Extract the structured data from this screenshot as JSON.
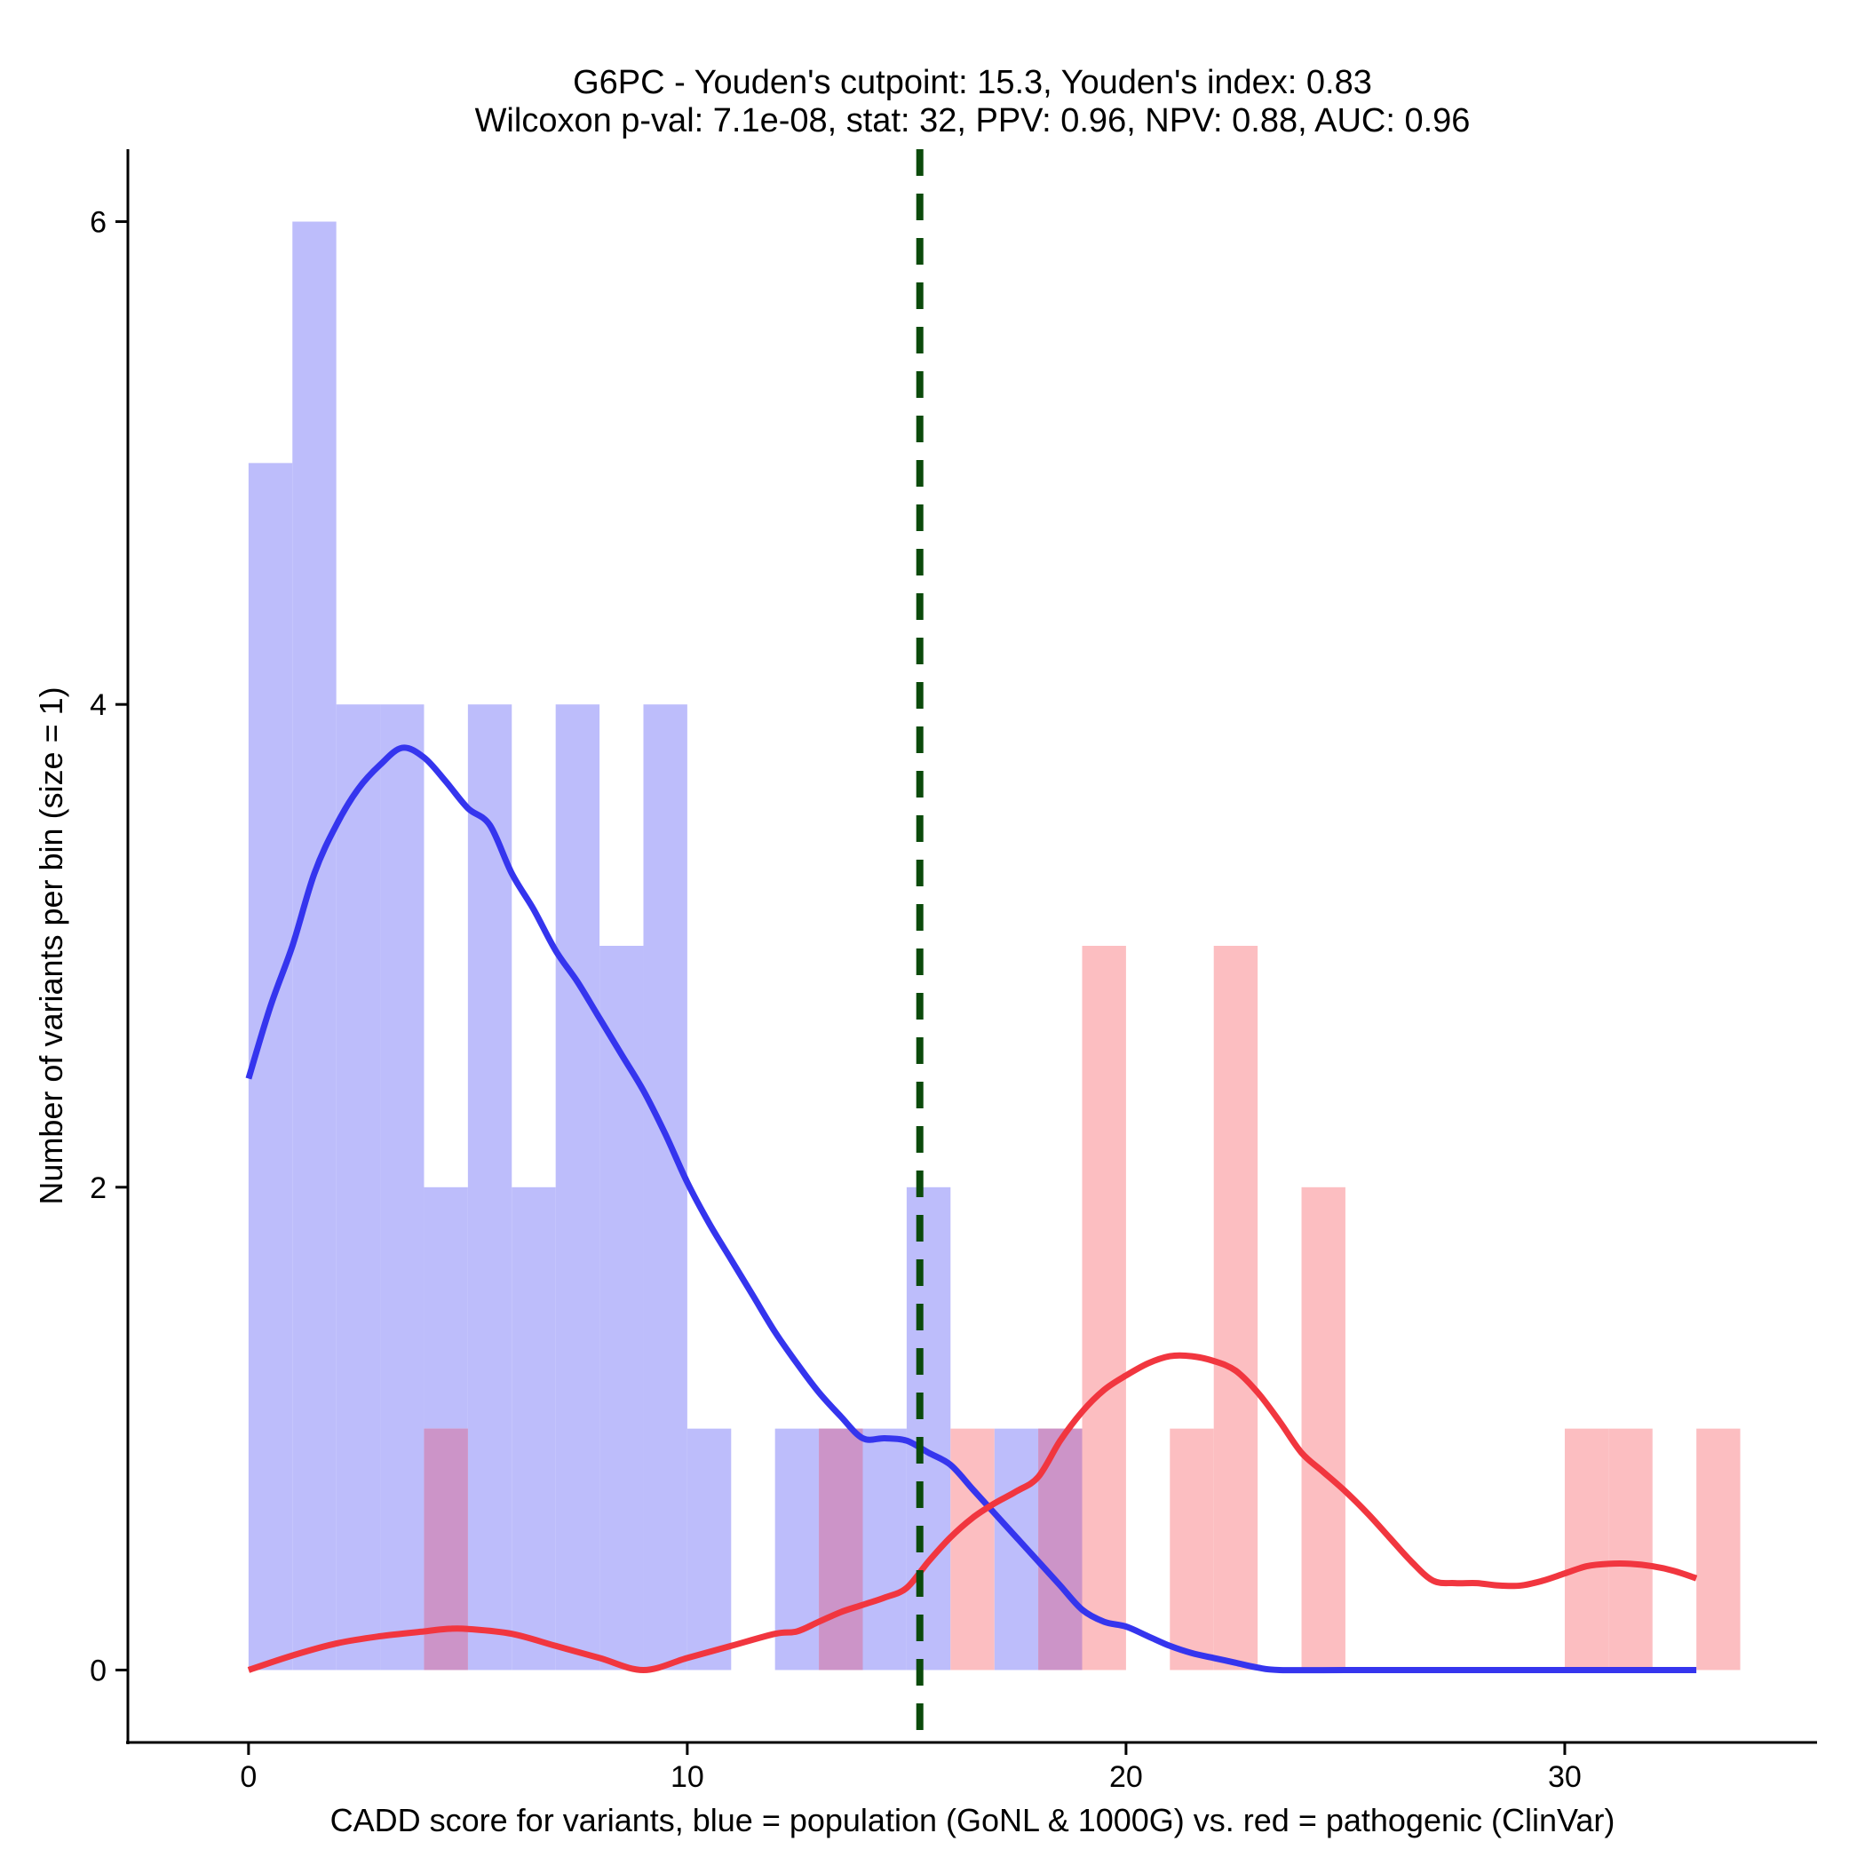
{
  "chart_data": {
    "type": "bar",
    "title_line1": "G6PC - Youden's cutpoint: 15.3, Youden's index: 0.83",
    "title_line2": "Wilcoxon p-val: 7.1e-08, stat: 32, PPV: 0.96, NPV: 0.88, AUC: 0.96",
    "xlabel": "CADD score for variants, blue = population (GoNL & 1000G) vs. red = pathogenic (ClinVar)",
    "ylabel": "Number of variants per bin (size = 1)",
    "xlim": [
      -2.75,
      35.75
    ],
    "ylim": [
      -0.3,
      6.3
    ],
    "xticks": [
      0,
      10,
      20,
      30
    ],
    "yticks": [
      0,
      2,
      4,
      6
    ],
    "cutpoint": 15.3,
    "colors": {
      "population_bar": "#bdbdfb",
      "pathogenic_bar": "#fcbec1",
      "overlap_bar": "#cc94c8",
      "population_line": "#3535ee",
      "pathogenic_line": "#f1363f",
      "cutpoint_line": "#0b4a0b"
    },
    "series": [
      {
        "name": "population (GoNL & 1000G)",
        "bins": [
          {
            "x0": 0,
            "x1": 1,
            "count": 5
          },
          {
            "x0": 1,
            "x1": 2,
            "count": 6
          },
          {
            "x0": 2,
            "x1": 3,
            "count": 4
          },
          {
            "x0": 3,
            "x1": 4,
            "count": 4
          },
          {
            "x0": 4,
            "x1": 5,
            "count": 2
          },
          {
            "x0": 5,
            "x1": 6,
            "count": 4
          },
          {
            "x0": 6,
            "x1": 7,
            "count": 2
          },
          {
            "x0": 7,
            "x1": 8,
            "count": 4
          },
          {
            "x0": 8,
            "x1": 9,
            "count": 3
          },
          {
            "x0": 9,
            "x1": 10,
            "count": 4
          },
          {
            "x0": 10,
            "x1": 11,
            "count": 1
          },
          {
            "x0": 12,
            "x1": 13,
            "count": 1
          },
          {
            "x0": 13,
            "x1": 14,
            "count": 1
          },
          {
            "x0": 14,
            "x1": 15,
            "count": 1
          },
          {
            "x0": 15,
            "x1": 16,
            "count": 2
          },
          {
            "x0": 17,
            "x1": 18,
            "count": 1
          },
          {
            "x0": 18,
            "x1": 19,
            "count": 1
          }
        ],
        "density": [
          [
            0,
            2.45
          ],
          [
            0.5,
            2.75
          ],
          [
            1.0,
            3.0
          ],
          [
            1.5,
            3.3
          ],
          [
            2.0,
            3.5
          ],
          [
            2.5,
            3.65
          ],
          [
            3.0,
            3.75
          ],
          [
            3.5,
            3.82
          ],
          [
            4.0,
            3.78
          ],
          [
            4.5,
            3.68
          ],
          [
            5.0,
            3.57
          ],
          [
            5.5,
            3.5
          ],
          [
            6.0,
            3.3
          ],
          [
            6.5,
            3.15
          ],
          [
            7.0,
            2.98
          ],
          [
            7.5,
            2.85
          ],
          [
            8.0,
            2.7
          ],
          [
            8.5,
            2.55
          ],
          [
            9.0,
            2.4
          ],
          [
            9.5,
            2.22
          ],
          [
            10.0,
            2.02
          ],
          [
            10.5,
            1.85
          ],
          [
            11.0,
            1.7
          ],
          [
            11.5,
            1.55
          ],
          [
            12.0,
            1.4
          ],
          [
            12.5,
            1.27
          ],
          [
            13.0,
            1.15
          ],
          [
            13.5,
            1.05
          ],
          [
            14.0,
            0.96
          ],
          [
            14.5,
            0.96
          ],
          [
            15.0,
            0.95
          ],
          [
            15.5,
            0.9
          ],
          [
            16.0,
            0.85
          ],
          [
            16.5,
            0.75
          ],
          [
            17.0,
            0.65
          ],
          [
            17.5,
            0.55
          ],
          [
            18.0,
            0.45
          ],
          [
            18.5,
            0.35
          ],
          [
            19.0,
            0.25
          ],
          [
            19.5,
            0.2
          ],
          [
            20.0,
            0.18
          ],
          [
            20.5,
            0.14
          ],
          [
            21.0,
            0.1
          ],
          [
            21.5,
            0.07
          ],
          [
            22.0,
            0.05
          ],
          [
            22.5,
            0.03
          ],
          [
            23.0,
            0.01
          ],
          [
            23.5,
            0.0
          ],
          [
            25.0,
            0.0
          ],
          [
            27.0,
            0.0
          ],
          [
            29.0,
            0.0
          ],
          [
            31.0,
            0.0
          ],
          [
            33.0,
            0.0
          ]
        ]
      },
      {
        "name": "pathogenic (ClinVar)",
        "bins": [
          {
            "x0": 4,
            "x1": 5,
            "count": 1
          },
          {
            "x0": 13,
            "x1": 14,
            "count": 1
          },
          {
            "x0": 16,
            "x1": 17,
            "count": 1
          },
          {
            "x0": 18,
            "x1": 19,
            "count": 1
          },
          {
            "x0": 19,
            "x1": 20,
            "count": 3
          },
          {
            "x0": 21,
            "x1": 22,
            "count": 1
          },
          {
            "x0": 22,
            "x1": 23,
            "count": 3
          },
          {
            "x0": 24,
            "x1": 25,
            "count": 2
          },
          {
            "x0": 30,
            "x1": 31,
            "count": 1
          },
          {
            "x0": 31,
            "x1": 32,
            "count": 1
          },
          {
            "x0": 33,
            "x1": 34,
            "count": 1
          }
        ],
        "density": [
          [
            0,
            0.0
          ],
          [
            1.0,
            0.06
          ],
          [
            2.0,
            0.11
          ],
          [
            3.0,
            0.14
          ],
          [
            4.0,
            0.16
          ],
          [
            4.5,
            0.17
          ],
          [
            5.0,
            0.17
          ],
          [
            6.0,
            0.15
          ],
          [
            7.0,
            0.1
          ],
          [
            8.0,
            0.05
          ],
          [
            9.0,
            0.0
          ],
          [
            10.0,
            0.05
          ],
          [
            11.0,
            0.1
          ],
          [
            12.0,
            0.15
          ],
          [
            12.5,
            0.16
          ],
          [
            13.0,
            0.2
          ],
          [
            13.5,
            0.24
          ],
          [
            14.0,
            0.27
          ],
          [
            14.5,
            0.3
          ],
          [
            15.0,
            0.34
          ],
          [
            15.5,
            0.45
          ],
          [
            16.0,
            0.55
          ],
          [
            16.5,
            0.63
          ],
          [
            17.0,
            0.69
          ],
          [
            17.5,
            0.74
          ],
          [
            18.0,
            0.8
          ],
          [
            18.5,
            0.95
          ],
          [
            19.0,
            1.07
          ],
          [
            19.5,
            1.16
          ],
          [
            20.0,
            1.22
          ],
          [
            20.5,
            1.27
          ],
          [
            21.0,
            1.3
          ],
          [
            21.5,
            1.3
          ],
          [
            22.0,
            1.28
          ],
          [
            22.5,
            1.24
          ],
          [
            23.0,
            1.15
          ],
          [
            23.5,
            1.03
          ],
          [
            24.0,
            0.9
          ],
          [
            24.5,
            0.82
          ],
          [
            25.0,
            0.74
          ],
          [
            25.5,
            0.65
          ],
          [
            26.0,
            0.55
          ],
          [
            26.5,
            0.45
          ],
          [
            27.0,
            0.37
          ],
          [
            27.5,
            0.36
          ],
          [
            28.0,
            0.36
          ],
          [
            28.5,
            0.35
          ],
          [
            29.0,
            0.35
          ],
          [
            29.5,
            0.37
          ],
          [
            30.0,
            0.4
          ],
          [
            30.5,
            0.43
          ],
          [
            31.0,
            0.44
          ],
          [
            31.5,
            0.44
          ],
          [
            32.0,
            0.43
          ],
          [
            32.5,
            0.41
          ],
          [
            33.0,
            0.38
          ]
        ]
      }
    ]
  }
}
